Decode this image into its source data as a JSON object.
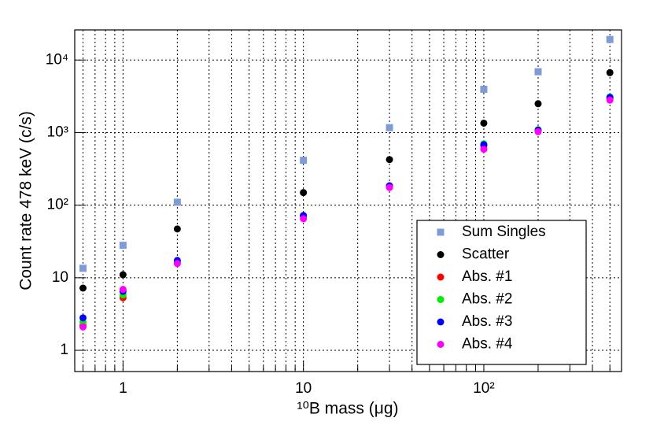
{
  "chart_data": {
    "type": "scatter",
    "xlabel": "¹⁰B mass (μg)",
    "ylabel": "Count rate 478 keV (c/s)",
    "x": [
      0.6,
      1,
      2,
      10,
      30,
      100,
      200,
      500
    ],
    "series": [
      {
        "name": "Sum Singles",
        "color": "#7f9bd6",
        "marker": "square",
        "values": [
          13.5,
          28,
          110,
          415,
          1170,
          3950,
          6900,
          19200
        ]
      },
      {
        "name": "Scatter",
        "color": "#000000",
        "marker": "circle",
        "values": [
          7.2,
          11,
          47,
          149,
          425,
          1350,
          2500,
          6700
        ]
      },
      {
        "name": "Abs. #1",
        "color": "#ff0000",
        "marker": "circle",
        "values": [
          2.2,
          5.3,
          16.5,
          70,
          180,
          660,
          1080,
          2950
        ]
      },
      {
        "name": "Abs. #2",
        "color": "#00ee00",
        "marker": "circle",
        "values": [
          2.45,
          5.8,
          16.5,
          70,
          185,
          700,
          1100,
          3100
        ]
      },
      {
        "name": "Abs. #3",
        "color": "#0000ff",
        "marker": "circle",
        "values": [
          2.8,
          6.5,
          17.3,
          72,
          185,
          680,
          1080,
          3050
        ]
      },
      {
        "name": "Abs. #4",
        "color": "#ff00ff",
        "marker": "circle",
        "values": [
          2.1,
          6.9,
          15.7,
          65,
          175,
          590,
          1030,
          2800
        ]
      }
    ],
    "xlim": [
      0.54,
      580
    ],
    "ylim": [
      0.51,
      26000
    ],
    "xlog": true,
    "ylog": true,
    "xticks": [
      1,
      10,
      {
        "value": 100,
        "label": "10²"
      }
    ],
    "xminorticks": [
      0.6,
      0.7,
      0.8,
      0.9,
      2,
      3,
      4,
      5,
      6,
      7,
      8,
      9,
      20,
      30,
      40,
      50,
      60,
      70,
      80,
      90,
      200,
      300,
      400,
      500
    ],
    "yticks": [
      1,
      10,
      {
        "value": 100,
        "label": "10²"
      },
      {
        "value": 1000,
        "label": "10³"
      },
      {
        "value": 10000,
        "label": "10⁴"
      }
    ],
    "grid": true,
    "legend": "lower right"
  }
}
